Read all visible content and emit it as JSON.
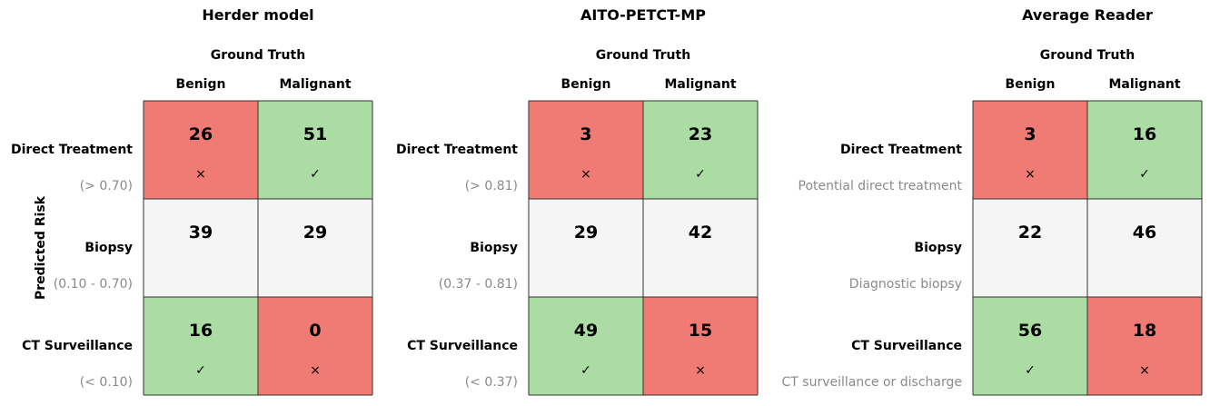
{
  "colors": {
    "correct": "#abdca4",
    "incorrect": "#f07a74",
    "neutral": "#f5f5f5",
    "border": "#333333",
    "subtext": "#8a8a8a",
    "text": "#000000"
  },
  "y_axis_label": "Predicted Risk",
  "chart_data": [
    {
      "type": "table",
      "title": "Herder model",
      "header": "Ground Truth",
      "columns": [
        "Benign",
        "Malignant"
      ],
      "rows": [
        {
          "label": "Direct Treatment",
          "sublabel": "(> 0.70)"
        },
        {
          "label": "Biopsy",
          "sublabel": "(0.10 - 0.70)"
        },
        {
          "label": "CT Surveillance",
          "sublabel": "(< 0.10)"
        }
      ],
      "values": [
        [
          26,
          51
        ],
        [
          39,
          29
        ],
        [
          16,
          0
        ]
      ],
      "status": [
        [
          "incorrect",
          "correct"
        ],
        [
          "neutral",
          "neutral"
        ],
        [
          "correct",
          "incorrect"
        ]
      ],
      "marks": [
        [
          "×",
          "✓"
        ],
        [
          "",
          ""
        ],
        [
          "✓",
          "×"
        ]
      ]
    },
    {
      "type": "table",
      "title": "AITO-PETCT-MP",
      "header": "Ground Truth",
      "columns": [
        "Benign",
        "Malignant"
      ],
      "rows": [
        {
          "label": "Direct Treatment",
          "sublabel": "(> 0.81)"
        },
        {
          "label": "Biopsy",
          "sublabel": "(0.37 - 0.81)"
        },
        {
          "label": "CT Surveillance",
          "sublabel": "(< 0.37)"
        }
      ],
      "values": [
        [
          3,
          23
        ],
        [
          29,
          42
        ],
        [
          49,
          15
        ]
      ],
      "status": [
        [
          "incorrect",
          "correct"
        ],
        [
          "neutral",
          "neutral"
        ],
        [
          "correct",
          "incorrect"
        ]
      ],
      "marks": [
        [
          "×",
          "✓"
        ],
        [
          "",
          ""
        ],
        [
          "✓",
          "×"
        ]
      ]
    },
    {
      "type": "table",
      "title": "Average Reader",
      "header": "Ground Truth",
      "columns": [
        "Benign",
        "Malignant"
      ],
      "rows": [
        {
          "label": "Direct Treatment",
          "sublabel": "Potential direct treatment"
        },
        {
          "label": "Biopsy",
          "sublabel": "Diagnostic biopsy"
        },
        {
          "label": "CT Surveillance",
          "sublabel": "CT surveillance or discharge"
        }
      ],
      "values": [
        [
          3,
          16
        ],
        [
          22,
          46
        ],
        [
          56,
          18
        ]
      ],
      "status": [
        [
          "incorrect",
          "correct"
        ],
        [
          "neutral",
          "neutral"
        ],
        [
          "correct",
          "incorrect"
        ]
      ],
      "marks": [
        [
          "×",
          "✓"
        ],
        [
          "",
          ""
        ],
        [
          "✓",
          "×"
        ]
      ]
    }
  ]
}
